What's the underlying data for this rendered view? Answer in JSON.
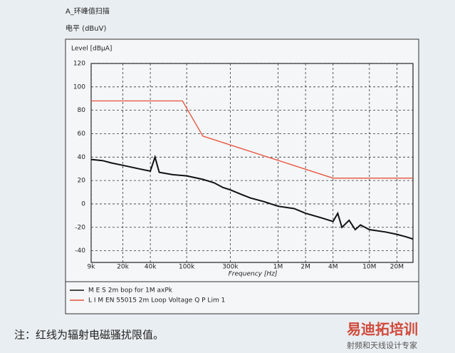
{
  "chart_data": {
    "type": "line",
    "title": "A_环峰值扫描",
    "subtitle": "电平 (dBuV)",
    "ylabel": "Level [dBµA]",
    "xlabel": "Frequency [Hz]",
    "log_x": true,
    "grid": true,
    "xlim": [
      9000,
      30000000
    ],
    "ylim": [
      -50,
      120
    ],
    "xticks": [
      {
        "value": 9000,
        "label": "9k"
      },
      {
        "value": 20000,
        "label": "20k"
      },
      {
        "value": 40000,
        "label": "40k"
      },
      {
        "value": 100000,
        "label": "100k"
      },
      {
        "value": 300000,
        "label": "300k"
      },
      {
        "value": 1000000,
        "label": "1M"
      },
      {
        "value": 2000000,
        "label": "2M"
      },
      {
        "value": 4000000,
        "label": "4M"
      },
      {
        "value": 10000000,
        "label": "10M"
      },
      {
        "value": 20000000,
        "label": "20M"
      }
    ],
    "yticks": [
      -40,
      -20,
      0,
      20,
      40,
      60,
      80,
      100,
      120
    ],
    "series": [
      {
        "name": "M E S   2m  bop for 1M axPk",
        "color": "#111111",
        "x": [
          9000,
          12000,
          15000,
          20000,
          30000,
          40000,
          45000,
          50000,
          70000,
          100000,
          150000,
          200000,
          250000,
          300000,
          400000,
          500000,
          700000,
          1000000,
          1500000,
          2000000,
          3000000,
          4000000,
          4500000,
          5000000,
          6000000,
          7000000,
          8000000,
          10000000,
          15000000,
          20000000,
          25000000,
          30000000
        ],
        "values": [
          38,
          37,
          35,
          33,
          30,
          28,
          40,
          27,
          25,
          24,
          21,
          18,
          14,
          12,
          8,
          5,
          2,
          -2,
          -4,
          -8,
          -12,
          -15,
          -8,
          -20,
          -14,
          -22,
          -18,
          -22,
          -24,
          -26,
          -28,
          -30
        ]
      },
      {
        "name": "L I M   EN 55015 2m Loop      Voltage Q P Lim 1",
        "color": "#e8503a",
        "x": [
          9000,
          90000,
          150000,
          4000000,
          30000000
        ],
        "values": [
          88,
          88,
          58,
          22,
          22
        ]
      }
    ],
    "caption": "注：红线为辐射电磁骚扰限值。",
    "watermark": [
      "易迪拓培训",
      "射频和天线设计专家"
    ]
  }
}
